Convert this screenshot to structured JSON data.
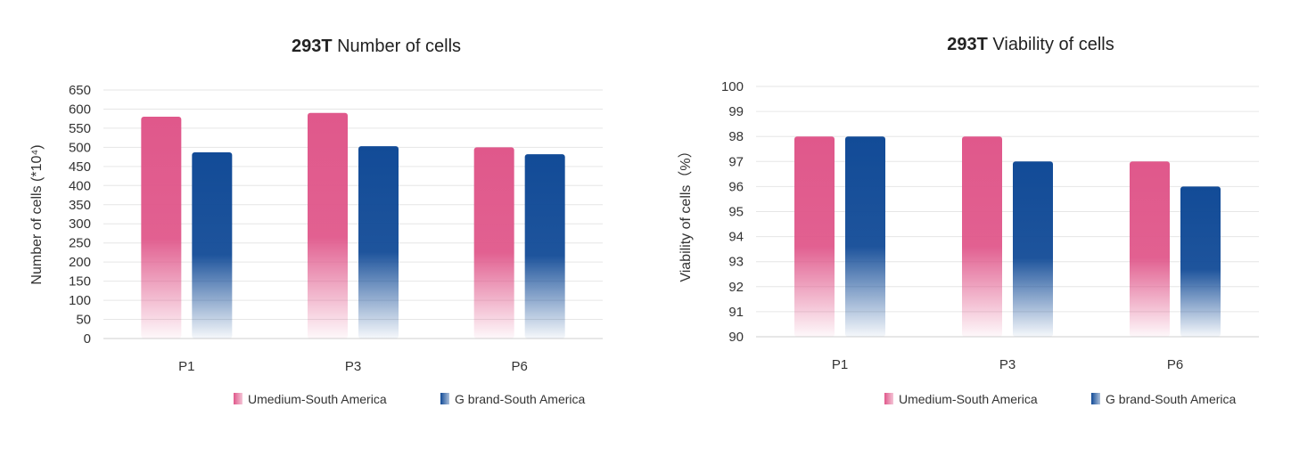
{
  "colors": {
    "pink": "#e0588b",
    "blue": "#124b97",
    "grid": "#e6e6e6",
    "text": "#333333"
  },
  "chart_data": [
    {
      "type": "bar",
      "title_bold": "293T",
      "title_rest": "Number of cells",
      "ylabel": "Number of cells (*10⁴)",
      "xlabel": "",
      "categories": [
        "P1",
        "P3",
        "P6"
      ],
      "ylim": [
        0,
        650
      ],
      "yticks": [
        0,
        50,
        100,
        150,
        200,
        250,
        300,
        350,
        400,
        450,
        500,
        550,
        600,
        650
      ],
      "grid": true,
      "legend_position": "bottom-right",
      "series": [
        {
          "name": "Umedium-South America",
          "color": "#e0588b",
          "values": [
            580,
            590,
            500
          ]
        },
        {
          "name": "G brand-South America",
          "color": "#124b97",
          "values": [
            487,
            503,
            482
          ]
        }
      ]
    },
    {
      "type": "bar",
      "title_bold": "293T",
      "title_rest": "Viability of cells",
      "ylabel": "Viability of cells（%）",
      "xlabel": "",
      "categories": [
        "P1",
        "P3",
        "P6"
      ],
      "ylim": [
        90,
        100
      ],
      "yticks": [
        90,
        91,
        92,
        93,
        94,
        95,
        96,
        97,
        98,
        99,
        100
      ],
      "grid": true,
      "legend_position": "bottom-right",
      "series": [
        {
          "name": "Umedium-South America",
          "color": "#e0588b",
          "values": [
            98,
            98,
            97
          ]
        },
        {
          "name": "G brand-South America",
          "color": "#124b97",
          "values": [
            98,
            97,
            96
          ]
        }
      ]
    }
  ]
}
